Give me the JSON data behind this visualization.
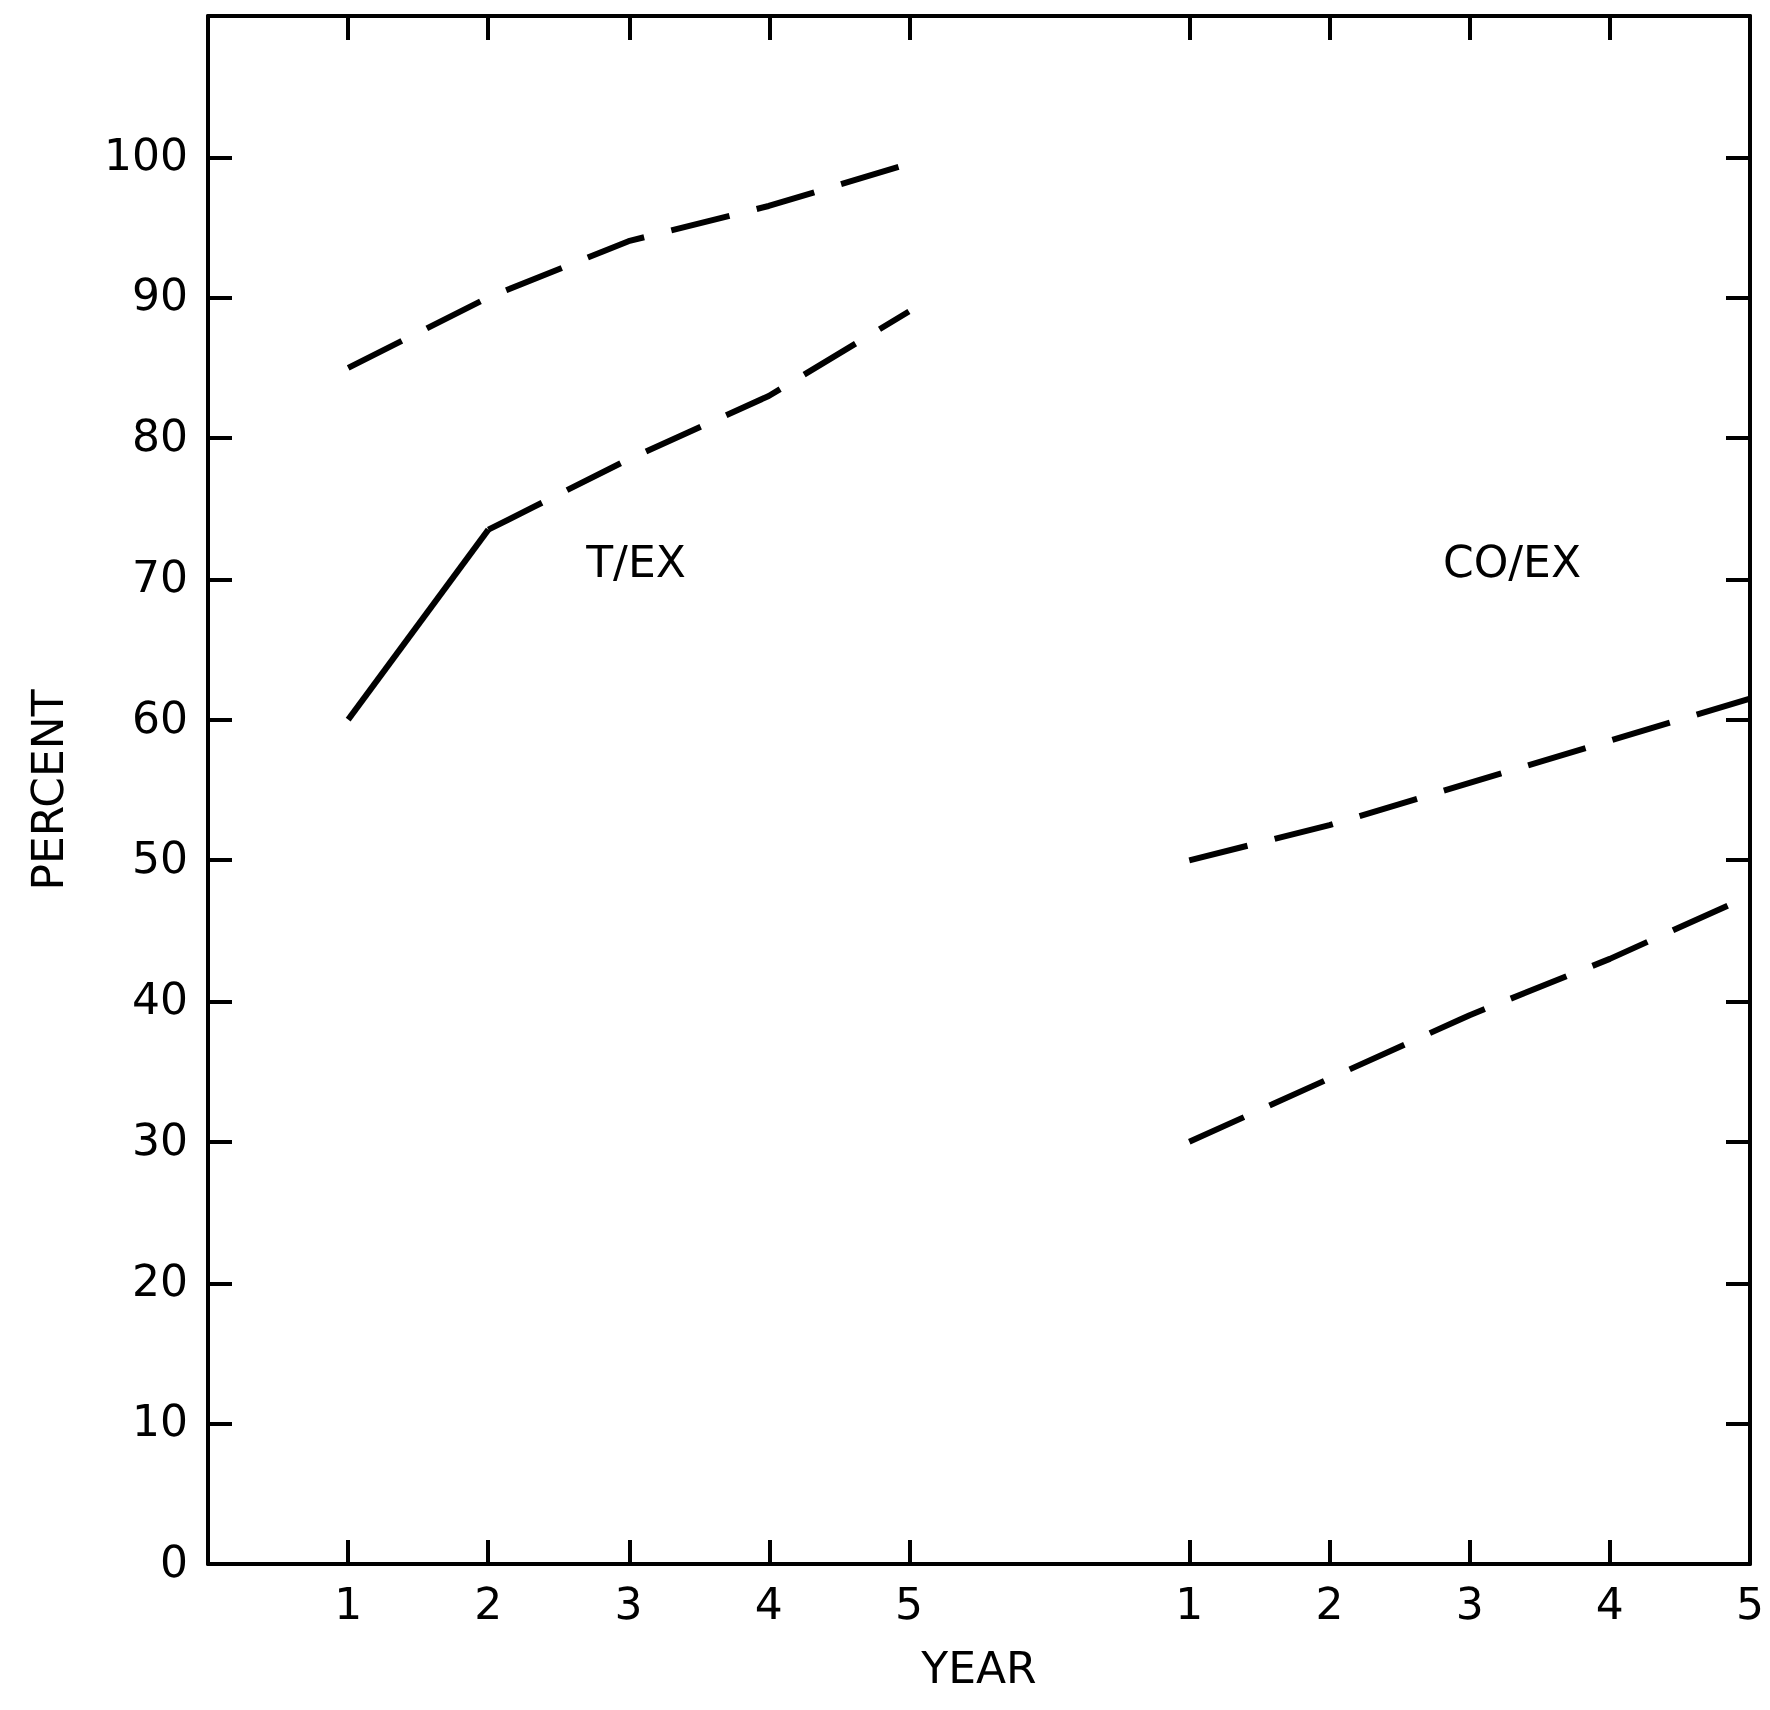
{
  "chart_data": {
    "type": "line",
    "xlabel": "YEAR",
    "ylabel": "PERCENT",
    "categories": [
      null,
      "1",
      "2",
      "3",
      "4",
      "5",
      null,
      "1",
      "2",
      "3",
      "4",
      "5"
    ],
    "ylim": [
      0,
      110
    ],
    "yticks": [
      0,
      10,
      20,
      30,
      40,
      50,
      60,
      70,
      80,
      90,
      100
    ],
    "grid": false,
    "marker": "none",
    "series": [
      {
        "color": "#000000",
        "line_style": "dashed",
        "values": [
          null,
          85,
          90,
          94,
          96.5,
          99.5,
          null,
          null,
          null,
          null,
          null,
          null
        ]
      },
      {
        "color": "#000000",
        "line_style": "solid",
        "values": [
          null,
          60,
          73.5,
          null,
          null,
          null,
          null,
          null,
          null,
          null,
          null,
          null
        ]
      },
      {
        "color": "#000000",
        "line_style": "dashed",
        "values": [
          null,
          null,
          73.5,
          78.5,
          83,
          89,
          null,
          null,
          null,
          null,
          null,
          null
        ]
      },
      {
        "color": "#000000",
        "line_style": "dashed",
        "values": [
          null,
          null,
          null,
          null,
          null,
          null,
          null,
          50,
          52.5,
          55.5,
          58.5,
          61.5
        ]
      },
      {
        "color": "#000000",
        "line_style": "dashed",
        "values": [
          null,
          null,
          null,
          null,
          null,
          null,
          null,
          30,
          34.5,
          39,
          43,
          47.5
        ]
      }
    ],
    "annotations": [
      "T/EX",
      "CO/EX"
    ]
  }
}
